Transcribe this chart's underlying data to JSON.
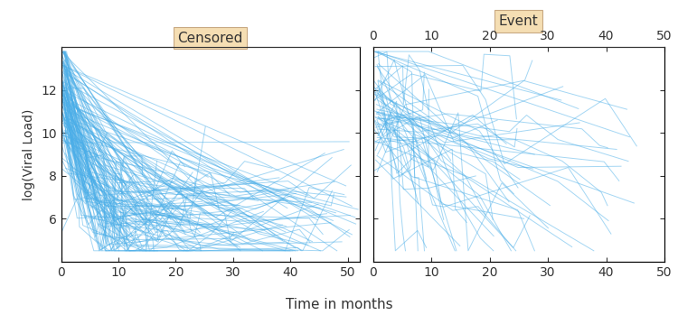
{
  "line_color": "#4aaee8",
  "line_alpha": 0.5,
  "line_width": 0.7,
  "background_color": "#ffffff",
  "panel_header_color": "#f5deb3",
  "panel_header_edge_color": "#c8a882",
  "xlabel": "Time in months",
  "ylabel": "log(Viral Load)",
  "left_panel_title": "Censored",
  "right_panel_title": "Event",
  "left_xlim": [
    0,
    52
  ],
  "right_xlim": [
    0,
    50
  ],
  "ylim": [
    4,
    14
  ],
  "left_xticks": [
    0,
    10,
    20,
    30,
    40,
    50
  ],
  "right_xticks": [
    0,
    10,
    20,
    30,
    40,
    50
  ],
  "yticks": [
    6,
    8,
    10,
    12
  ],
  "tick_color": "#333333",
  "n_censored": 150,
  "n_event": 60,
  "random_seed": 42
}
